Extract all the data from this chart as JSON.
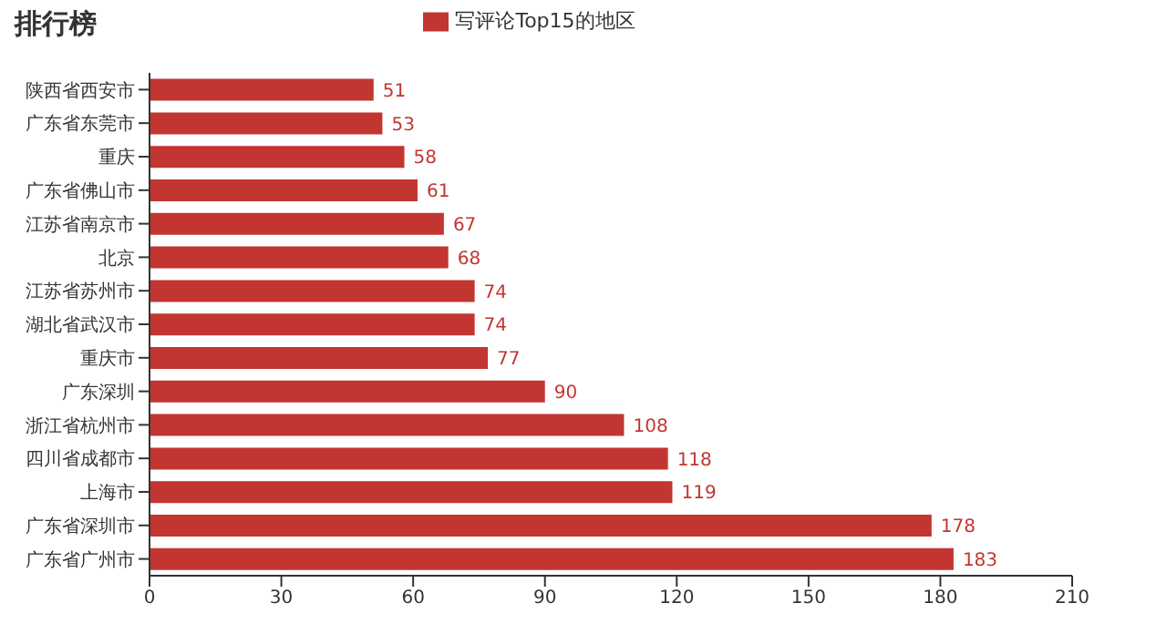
{
  "chart_data": {
    "type": "bar",
    "orientation": "horizontal",
    "title": "排行榜",
    "categories": [
      "陕西省西安市",
      "广东省东莞市",
      "重庆",
      "广东省佛山市",
      "江苏省南京市",
      "北京",
      "江苏省苏州市",
      "湖北省武汉市",
      "重庆市",
      "广东深圳",
      "浙江省杭州市",
      "四川省成都市",
      "上海市",
      "广东省深圳市",
      "广东省广州市"
    ],
    "series": [
      {
        "name": "写评论Top15的地区",
        "color": "#c23531",
        "values": [
          51,
          53,
          58,
          61,
          67,
          68,
          74,
          74,
          77,
          90,
          108,
          118,
          119,
          178,
          183
        ]
      }
    ],
    "xlim": [
      0,
      210
    ],
    "xticks": [
      0,
      30,
      60,
      90,
      120,
      150,
      180,
      210
    ],
    "data_labels": true,
    "legend": "top"
  }
}
